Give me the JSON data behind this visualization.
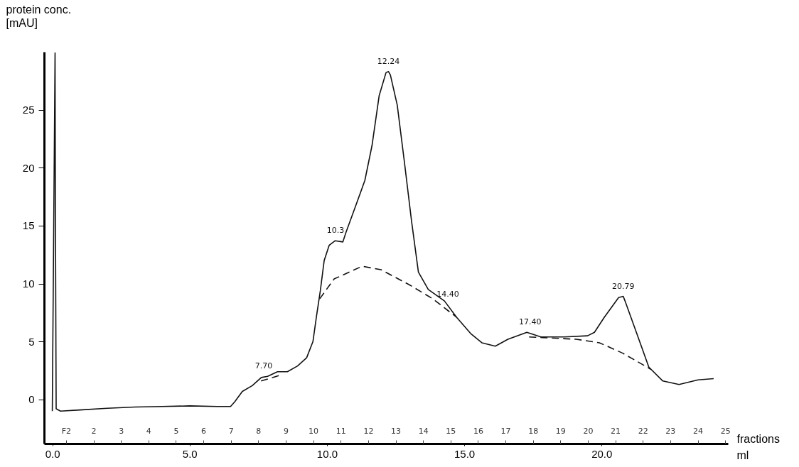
{
  "chart_data": {
    "type": "line",
    "ylabel": "protein conc. [mAU]",
    "xlabel": "ml",
    "x2label": "fractions",
    "xlim": [
      -0.3,
      24.6
    ],
    "ylim": [
      -3.8,
      30
    ],
    "xticks": [
      {
        "value": 0,
        "label": "0.0"
      },
      {
        "value": 5,
        "label": "5.0"
      },
      {
        "value": 10,
        "label": "10.0"
      },
      {
        "value": 15,
        "label": "15.0"
      },
      {
        "value": 20,
        "label": "20.0"
      }
    ],
    "yticks": [
      0,
      5,
      10,
      15,
      20,
      25
    ],
    "x2lim": [
      0.2,
      25.1
    ],
    "x2ticks": [
      {
        "value": 1,
        "label": "F2"
      },
      2,
      3,
      4,
      5,
      6,
      7,
      8,
      9,
      10,
      11,
      12,
      13,
      14,
      15,
      16,
      17,
      18,
      19,
      20,
      21,
      22,
      23,
      24,
      25
    ],
    "series": [
      {
        "color": "#111111",
        "line_style": "solid",
        "x": [
          0,
          0.1,
          0.11,
          0.14,
          0.3,
          1,
          2,
          3,
          4,
          5,
          6,
          6.49,
          6.64,
          6.92,
          7.28,
          7.61,
          7.84,
          8.2,
          8.56,
          8.93,
          9.26,
          9.49,
          9.62,
          9.76,
          9.9,
          10.08,
          10.3,
          10.58,
          10.69,
          11.03,
          11.38,
          11.64,
          11.9,
          12.15,
          12.24,
          12.31,
          12.56,
          12.82,
          13.08,
          13.33,
          13.69,
          14.28,
          14.72,
          15.23,
          15.64,
          16.13,
          16.59,
          17.28,
          17.79,
          18.64,
          19.49,
          19.74,
          20.1,
          20.62,
          20.79,
          20.87,
          21.28,
          21.72,
          22.23,
          22.82,
          23.51,
          24.08
        ],
        "values": [
          -1.0,
          29.9,
          18.5,
          -0.8,
          -1.0,
          -0.9,
          -0.75,
          -0.65,
          -0.6,
          -0.55,
          -0.6,
          -0.6,
          -0.2,
          0.7,
          1.2,
          1.9,
          2.0,
          2.4,
          2.4,
          2.9,
          3.6,
          5.0,
          7.2,
          9.4,
          12.0,
          13.3,
          13.7,
          13.6,
          14.4,
          16.6,
          18.9,
          21.9,
          26.2,
          28.2,
          28.3,
          28.0,
          25.4,
          20.5,
          15.4,
          11.0,
          9.5,
          8.5,
          7.1,
          5.7,
          4.9,
          4.6,
          5.2,
          5.8,
          5.4,
          5.4,
          5.5,
          5.8,
          7.1,
          8.8,
          8.9,
          8.4,
          5.7,
          2.8,
          1.6,
          1.3,
          1.7,
          1.8
        ]
      },
      {
        "color": "#111111",
        "line_style": "dashed",
        "x": [
          7.6,
          8.3,
          9.0,
          9.74,
          10.26,
          11.28,
          11.97,
          13.0,
          13.85,
          14.72,
          16.0,
          17.36,
          19.08,
          19.92,
          20.77,
          21.8
        ],
        "values": [
          1.6,
          2.1,
          null,
          8.7,
          10.4,
          11.5,
          11.2,
          9.9,
          8.7,
          7.1,
          null,
          5.4,
          5.2,
          4.9,
          4.0,
          2.6
        ]
      }
    ],
    "annotations": [
      {
        "text": "7.70",
        "x": 7.7,
        "y": 2.0
      },
      {
        "text": "10.3",
        "x": 10.31,
        "y": 13.7
      },
      {
        "text": "12.24",
        "x": 12.24,
        "y": 28.3
      },
      {
        "text": "14.40",
        "x": 14.4,
        "y": 8.2
      },
      {
        "text": "17.40",
        "x": 17.4,
        "y": 5.8
      },
      {
        "text": "20.79",
        "x": 20.79,
        "y": 8.9
      }
    ]
  }
}
